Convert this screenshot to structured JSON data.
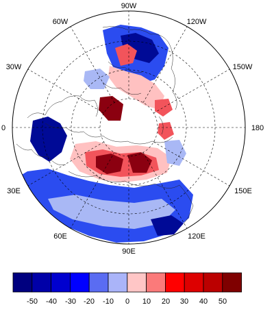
{
  "map": {
    "projection": "north-polar-stereographic",
    "graticule_style": "dashed",
    "longitude_labels": [
      "90W",
      "120W",
      "150W",
      "180",
      "150E",
      "120E",
      "90E",
      "60E",
      "30E",
      "0",
      "30W",
      "60W"
    ],
    "anomaly_colors": {
      "strong_positive": "#8b0010",
      "positive": "#f2545b",
      "weak_positive": "#ffc1c1",
      "weak_negative": "#a9b8f5",
      "negative": "#2b4cf0",
      "strong_negative": "#000a96"
    }
  },
  "colorbar": {
    "tick_labels": [
      "-50",
      "-40",
      "-30",
      "-20",
      "-10",
      "0",
      "10",
      "20",
      "30",
      "40",
      "50"
    ],
    "colors": [
      "#00007f",
      "#0000a8",
      "#0000cf",
      "#0000ff",
      "#5a6cf2",
      "#aab4f9",
      "#ffc6c6",
      "#fb7a7a",
      "#ff0000",
      "#dd0000",
      "#bb0000",
      "#7f0000"
    ]
  }
}
